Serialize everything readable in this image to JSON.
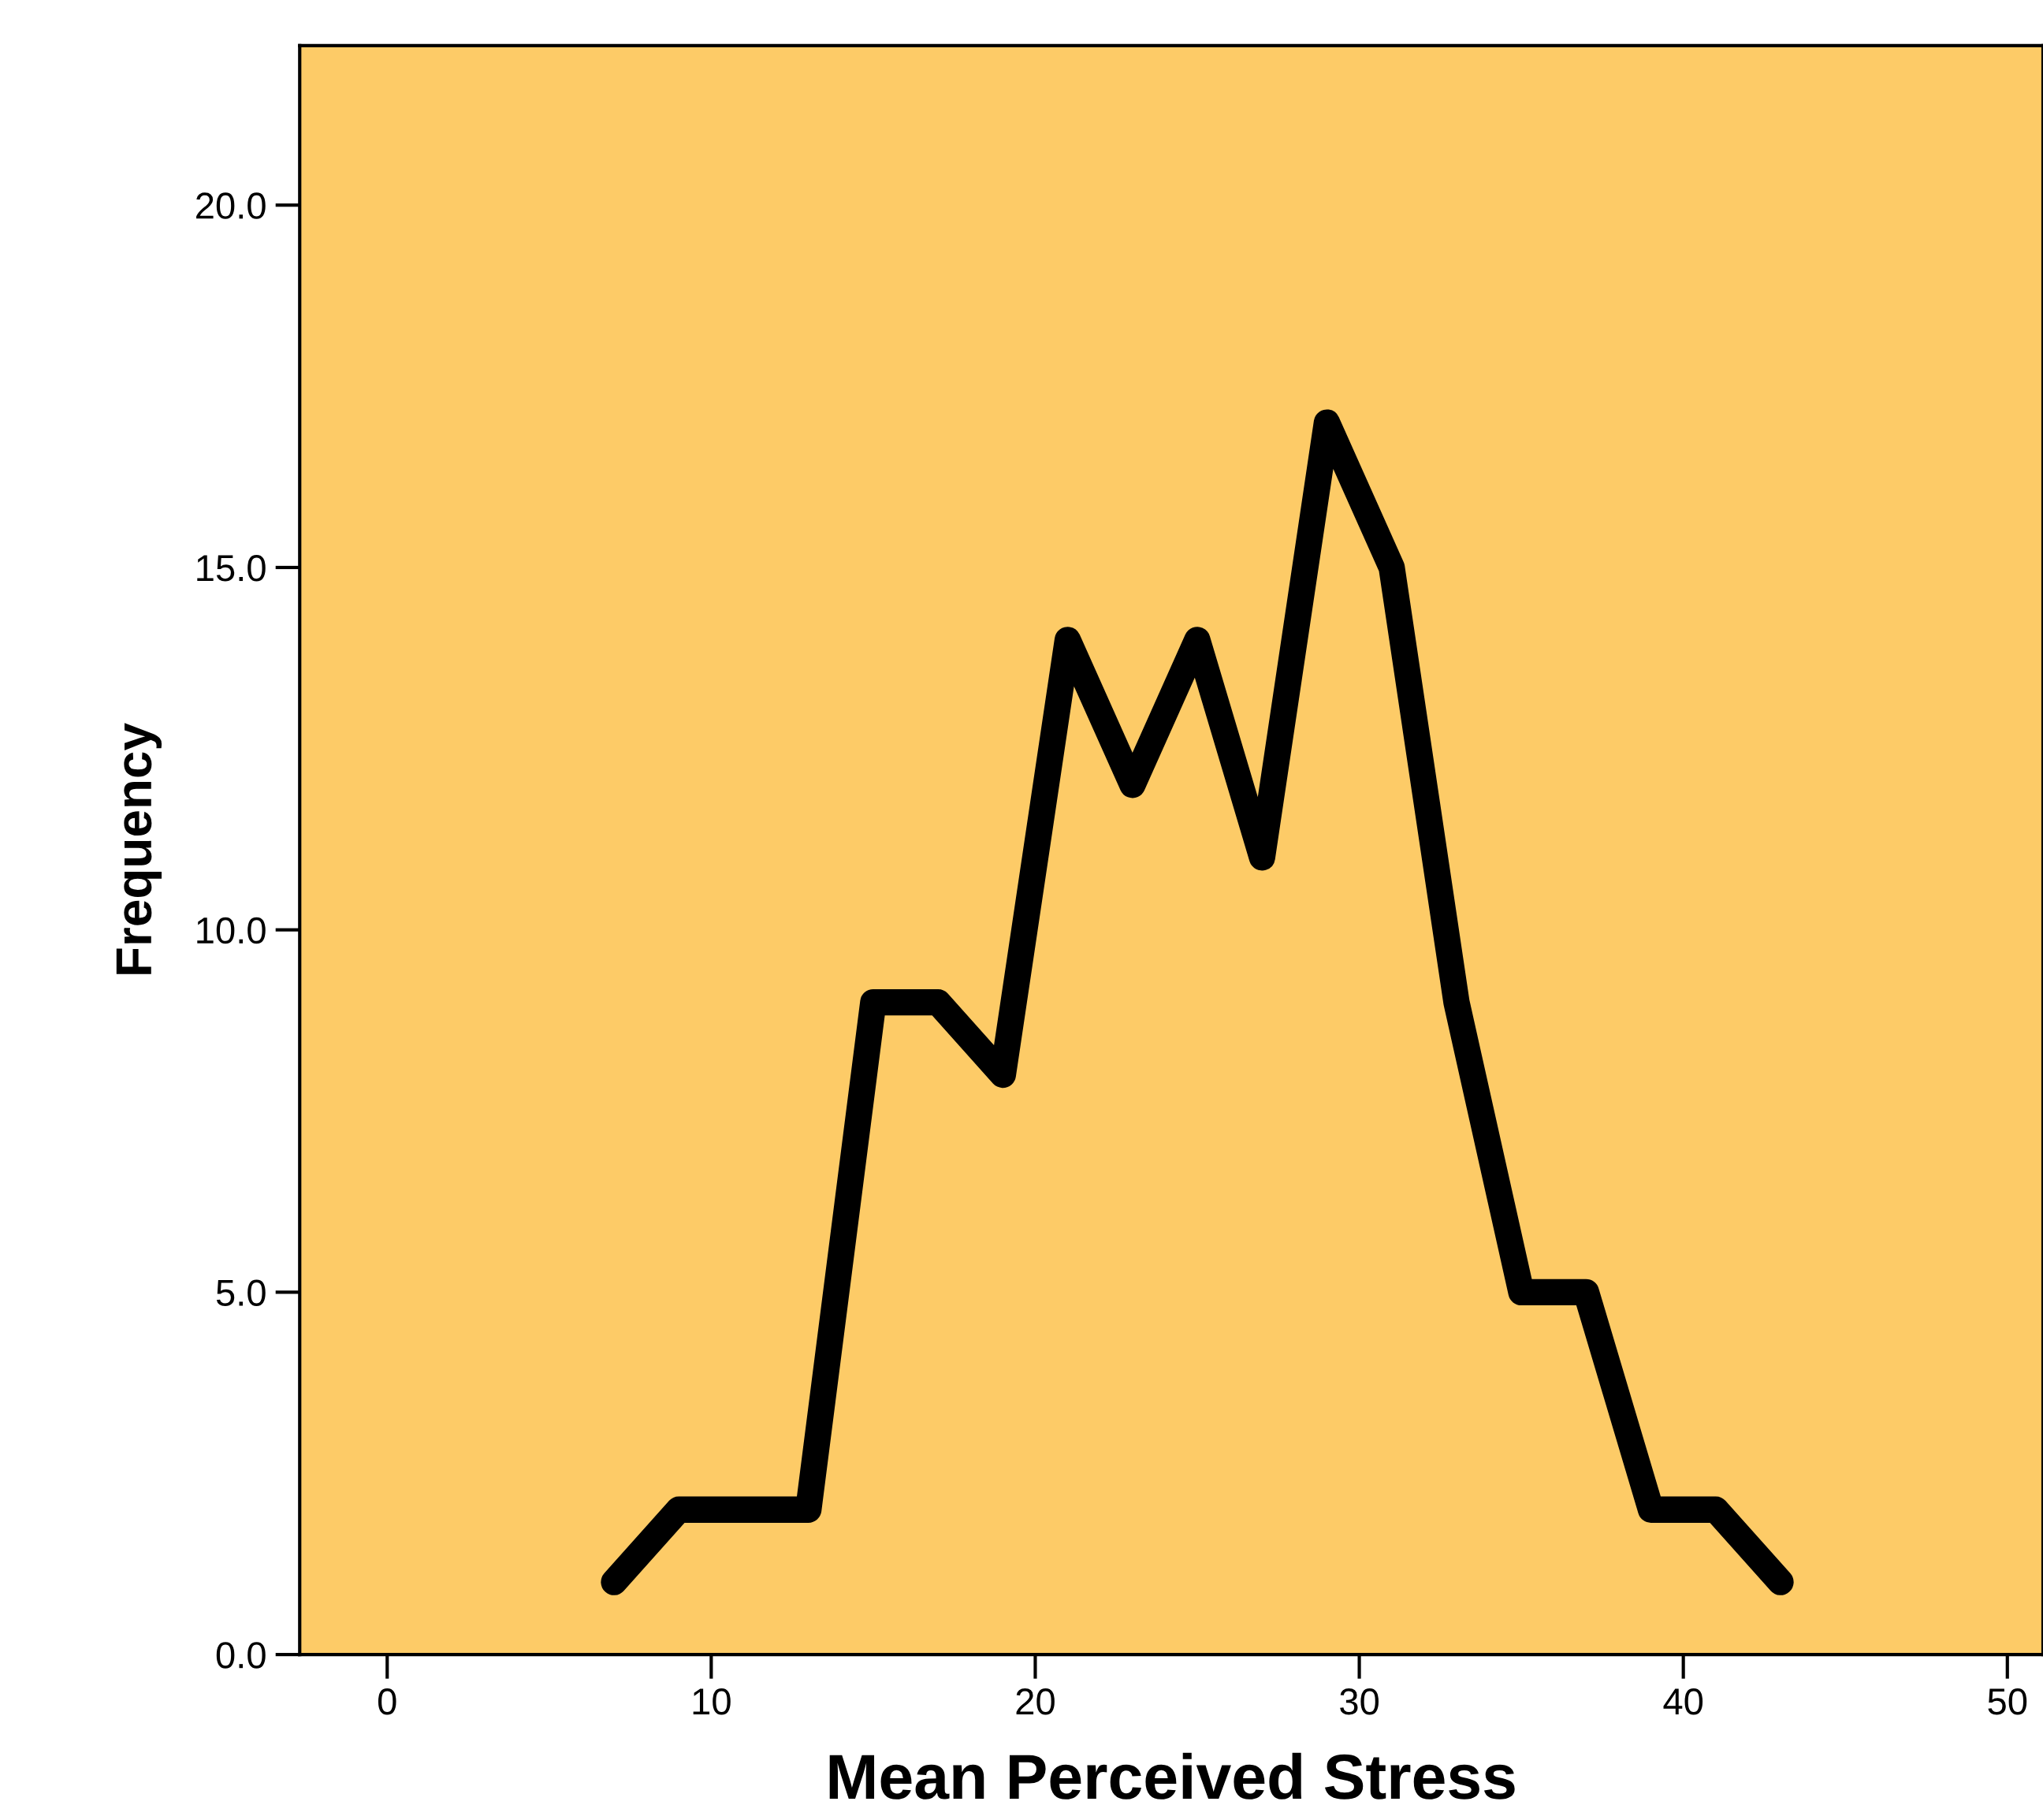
{
  "chart_data": {
    "type": "line",
    "xlabel": "Mean Perceived Stress",
    "ylabel": "Frequency",
    "x": [
      7,
      9,
      11,
      13,
      15,
      17,
      19,
      21,
      23,
      25,
      27,
      29,
      31,
      33,
      35,
      37,
      39,
      41,
      43
    ],
    "series": [
      {
        "color": "#000000",
        "values": [
          1,
          2,
          2,
          2,
          9,
          9,
          8,
          14,
          12,
          14,
          11,
          17,
          15,
          9,
          5,
          5,
          2,
          2,
          1
        ]
      }
    ],
    "xlim": [
      -2.7,
      51.1
    ],
    "ylim": [
      0,
      22.2
    ],
    "xticks": [
      0,
      10,
      20,
      30,
      40,
      50
    ],
    "yticks": [
      {
        "value": 0,
        "label": "0.0"
      },
      {
        "value": 5,
        "label": "5.0"
      },
      {
        "value": 10,
        "label": "10.0"
      },
      {
        "value": 15,
        "label": "15.0"
      },
      {
        "value": 20,
        "label": "20.0"
      }
    ],
    "grid": false,
    "legend": false,
    "line_style": "solid"
  }
}
